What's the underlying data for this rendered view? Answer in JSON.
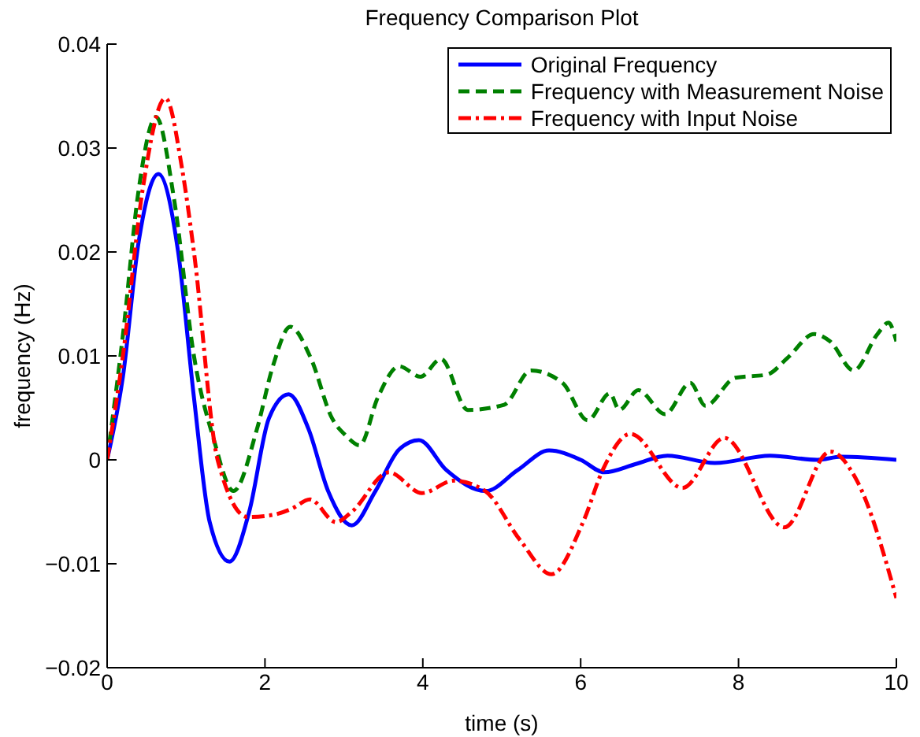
{
  "chart_data": {
    "type": "line",
    "title": "Frequency Comparison Plot",
    "xlabel": "time (s)",
    "ylabel": "frequency (Hz)",
    "xlim": [
      0,
      10
    ],
    "xticks": [
      0,
      2,
      4,
      6,
      8,
      10
    ],
    "ylim": [
      -0.02,
      0.04
    ],
    "yticks": [
      {
        "value": -0.02,
        "label": "−0.02"
      },
      {
        "value": -0.01,
        "label": "−0.01"
      },
      0,
      0.01,
      0.02,
      0.03,
      0.04
    ],
    "legend": "top right",
    "marker": "none",
    "series": [
      {
        "name": "Original Frequency",
        "color": "#0000ff",
        "line_style": "solid",
        "x": [
          0,
          0.2,
          0.4,
          0.65,
          0.9,
          1.1,
          1.3,
          1.55,
          1.8,
          2.05,
          2.3,
          2.55,
          2.8,
          3.1,
          3.4,
          3.7,
          3.95,
          4.3,
          4.8,
          5.2,
          5.6,
          6.0,
          6.3,
          6.7,
          7.1,
          7.7,
          8.4,
          9.0,
          9.3,
          10
        ],
        "values": [
          0,
          0.008,
          0.021,
          0.0275,
          0.02,
          0.006,
          -0.006,
          -0.0098,
          -0.005,
          0.004,
          0.0063,
          0.003,
          -0.003,
          -0.0063,
          -0.003,
          0.001,
          0.0019,
          -0.001,
          -0.003,
          -0.001,
          0.0009,
          0,
          -0.0012,
          -0.0004,
          0.0004,
          -0.0003,
          0.0004,
          0,
          0.0003,
          0
        ]
      },
      {
        "name": "Frequency with Measurement Noise",
        "color": "#008000",
        "line_style": "dashed",
        "x": [
          0,
          0.2,
          0.4,
          0.62,
          0.85,
          1.1,
          1.35,
          1.6,
          1.9,
          2.1,
          2.32,
          2.58,
          2.85,
          3.03,
          3.2,
          3.43,
          3.7,
          3.97,
          4.23,
          4.57,
          5.03,
          5.37,
          5.77,
          6.09,
          6.37,
          6.49,
          6.73,
          7.07,
          7.39,
          7.58,
          7.96,
          8.36,
          8.62,
          8.96,
          9.16,
          9.46,
          9.76,
          9.9,
          10
        ],
        "values": [
          0,
          0.012,
          0.026,
          0.033,
          0.025,
          0.01,
          0.002,
          -0.003,
          0.003,
          0.009,
          0.0128,
          0.0098,
          0.004,
          0.0023,
          0.0014,
          0.006,
          0.009,
          0.008,
          0.0097,
          0.0048,
          0.0053,
          0.0086,
          0.0074,
          0.0038,
          0.0064,
          0.0048,
          0.0067,
          0.0044,
          0.0074,
          0.0052,
          0.0079,
          0.0082,
          0.0098,
          0.0121,
          0.0114,
          0.0086,
          0.0121,
          0.0132,
          0.0114
        ]
      },
      {
        "name": "Frequency with Input Noise",
        "color": "#ff0000",
        "line_style": "dashdot",
        "x": [
          0,
          0.2,
          0.45,
          0.74,
          0.95,
          1.1,
          1.4,
          1.78,
          2.1,
          2.34,
          2.57,
          2.9,
          3.1,
          3.57,
          3.99,
          4.39,
          4.79,
          5.23,
          5.63,
          6.03,
          6.29,
          6.63,
          7.29,
          7.82,
          8.58,
          9.16,
          9.5,
          10
        ],
        "values": [
          0,
          0.01,
          0.026,
          0.0348,
          0.028,
          0.02,
          0,
          -0.0055,
          -0.0053,
          -0.0047,
          -0.0038,
          -0.006,
          -0.005,
          -0.0012,
          -0.0032,
          -0.002,
          -0.003,
          -0.0077,
          -0.011,
          -0.006,
          -0.0008,
          0.0025,
          -0.0027,
          0.0021,
          -0.0065,
          0.0008,
          -0.002,
          -0.0133
        ]
      }
    ]
  }
}
